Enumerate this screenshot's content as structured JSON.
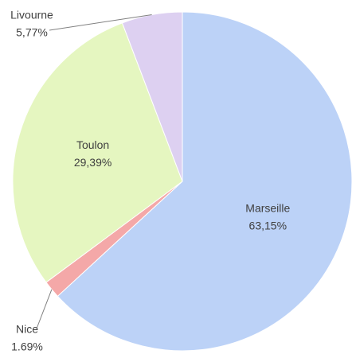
{
  "chart_data": {
    "type": "pie",
    "categories": [
      "Marseille",
      "Nice",
      "Toulon",
      "Livourne"
    ],
    "values": [
      63.15,
      1.69,
      29.39,
      5.77
    ],
    "value_labels": [
      "63,15%",
      "1.69%",
      "29,39%",
      "5,77%"
    ],
    "colors": [
      "#bcd2f7",
      "#f4a8a8",
      "#e5f6c0",
      "#ddd0f1"
    ]
  }
}
